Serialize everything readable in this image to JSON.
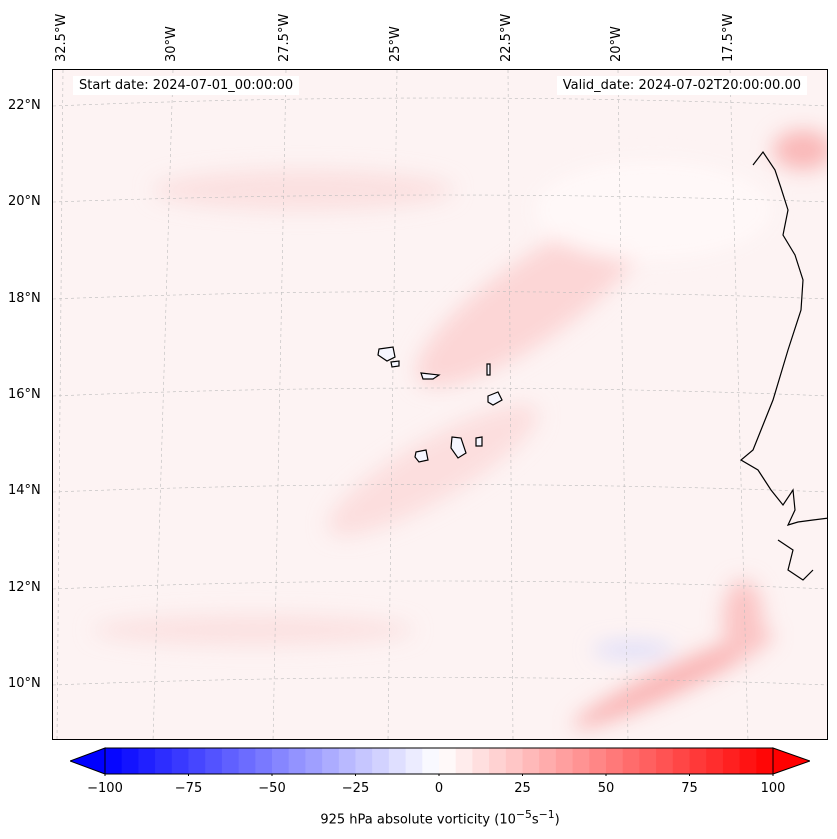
{
  "map": {
    "start_date": "Start date: 2024-07-01_00:00:00",
    "valid_date": "Valid_date: 2024-07-02T20:00:00.00",
    "lon_labels": [
      "32.5°W",
      "30°W",
      "27.5°W",
      "25°W",
      "22.5°W",
      "20°W",
      "17.5°W"
    ],
    "lat_labels": [
      "22°N",
      "20°N",
      "18°N",
      "16°N",
      "14°N",
      "12°N",
      "10°N"
    ]
  },
  "colorbar": {
    "min": -100,
    "max": 100,
    "step": 5,
    "ticks": [
      "−100",
      "−75",
      "−50",
      "−25",
      "0",
      "25",
      "50",
      "75",
      "100"
    ],
    "label": "925 hPa absolute vorticity (10",
    "label_exp1": "−5",
    "label_mid": "s",
    "label_exp2": "−1",
    "label_end": ")",
    "colors": {
      "low": "#0000ff",
      "mid": "#ffffff",
      "high": "#ff0000"
    }
  }
}
